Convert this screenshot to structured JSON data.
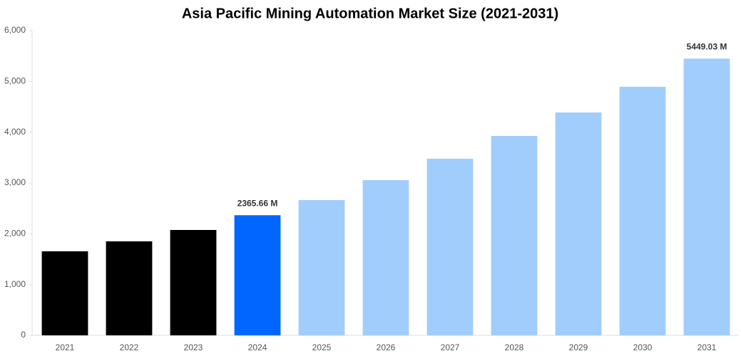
{
  "chart_data": {
    "type": "bar",
    "title": "Asia Pacific Mining Automation Market Size (2021-2031)",
    "categories": [
      "2021",
      "2022",
      "2023",
      "2024",
      "2025",
      "2026",
      "2027",
      "2028",
      "2029",
      "2030",
      "2031"
    ],
    "values": [
      1655,
      1851,
      2075,
      2365.66,
      2664,
      3057,
      3478,
      3926,
      4389,
      4894,
      5449.03
    ],
    "value_labels": [
      null,
      null,
      null,
      "2365.66 M",
      null,
      null,
      null,
      null,
      null,
      null,
      "5449.03 M"
    ],
    "colors": [
      "#000000",
      "#000000",
      "#000000",
      "#0066ff",
      "#a1cdfd",
      "#a1cdfd",
      "#a1cdfd",
      "#a1cdfd",
      "#a1cdfd",
      "#a1cdfd",
      "#a1cdfd"
    ],
    "ylim": [
      0,
      6000
    ],
    "yticks": [
      0,
      {
        "value": 1000,
        "label": "1,000"
      },
      {
        "value": 2000,
        "label": "2,000"
      },
      {
        "value": 3000,
        "label": "3,000"
      },
      {
        "value": 4000,
        "label": "4,000"
      },
      {
        "value": 5000,
        "label": "5,000"
      },
      {
        "value": 6000,
        "label": "6,000"
      }
    ],
    "grid": false
  }
}
